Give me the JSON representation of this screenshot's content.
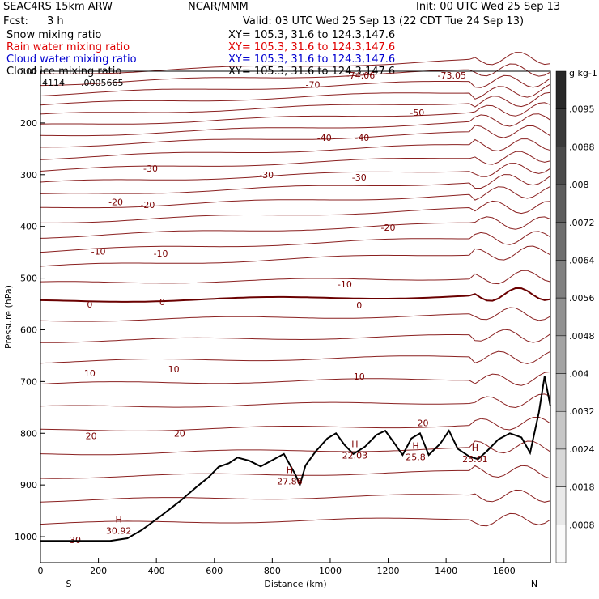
{
  "header": {
    "model": "SEAC4RS 15km ARW",
    "center": "NCAR/MMM",
    "init": "Init: 00 UTC Wed 25 Sep 13",
    "fcst_label": "Fcst:",
    "fcst_value": "3 h",
    "valid": "Valid: 03 UTC Wed 25 Sep 13 (22 CDT Tue 24 Sep 13)"
  },
  "fields": [
    {
      "name": "Snow mixing ratio",
      "xy": "XY= 105.3, 31.6 to 124.3,147.6",
      "color": "#000000"
    },
    {
      "name": "Rain water mixing ratio",
      "xy": "XY= 105.3, 31.6 to 124.3,147.6",
      "color": "#e00000"
    },
    {
      "name": "Cloud water mixing ratio",
      "xy": "XY= 105.3, 31.6 to 124.3,147.6",
      "color": "#0000d0"
    },
    {
      "name": "Cloud ice mixing ratio",
      "xy": "XY= 105.3, 31.6 to 124.3,147.6",
      "color": "#000000"
    }
  ],
  "corner_values": {
    "left": "4114",
    "right": ".0005665"
  },
  "chart_data": {
    "type": "cross-section",
    "xlabel": "Distance (km)",
    "ylabel": "Pressure (hPa)",
    "xlim": [
      0,
      1760
    ],
    "ylim": [
      1050,
      100
    ],
    "xticks": [
      0,
      200,
      400,
      600,
      800,
      1000,
      1200,
      1400,
      1600
    ],
    "yticks": [
      1000,
      900,
      800,
      700,
      600,
      500,
      400,
      300,
      200,
      100
    ],
    "end_labels": {
      "left": "S",
      "right": "N"
    },
    "temperature_contour_labels": [
      "-74.06",
      "-73.05",
      "-70",
      "-50",
      "-40",
      "-30",
      "-20",
      "-10",
      "0",
      "10",
      "20",
      "30"
    ],
    "high_labels": [
      {
        "x": 270,
        "p": 988,
        "value": "30.92"
      },
      {
        "x": 860,
        "p": 893,
        "value": "27.86"
      },
      {
        "x": 1085,
        "p": 843,
        "value": "22.03"
      },
      {
        "x": 1295,
        "p": 846,
        "value": "25.8"
      },
      {
        "x": 1500,
        "p": 850,
        "value": "25.01"
      }
    ],
    "colorbar": {
      "unit": "g kg-1",
      "ticks": [
        ".0095",
        ".0088",
        ".008",
        ".0072",
        ".0064",
        ".0056",
        ".0048",
        ".004",
        ".0032",
        ".0024",
        ".0018",
        ".0008"
      ]
    },
    "terrain": [
      [
        0,
        1008
      ],
      [
        160,
        1008
      ],
      [
        240,
        1008
      ],
      [
        300,
        1003
      ],
      [
        350,
        987
      ],
      [
        420,
        958
      ],
      [
        480,
        932
      ],
      [
        540,
        903
      ],
      [
        580,
        885
      ],
      [
        615,
        865
      ],
      [
        650,
        858
      ],
      [
        680,
        847
      ],
      [
        720,
        853
      ],
      [
        760,
        864
      ],
      [
        800,
        852
      ],
      [
        840,
        840
      ],
      [
        860,
        860
      ],
      [
        880,
        880
      ],
      [
        895,
        900
      ],
      [
        915,
        862
      ],
      [
        950,
        835
      ],
      [
        990,
        810
      ],
      [
        1020,
        800
      ],
      [
        1050,
        823
      ],
      [
        1080,
        840
      ],
      [
        1120,
        826
      ],
      [
        1160,
        803
      ],
      [
        1190,
        795
      ],
      [
        1220,
        818
      ],
      [
        1250,
        842
      ],
      [
        1280,
        810
      ],
      [
        1310,
        800
      ],
      [
        1340,
        842
      ],
      [
        1380,
        820
      ],
      [
        1410,
        795
      ],
      [
        1440,
        830
      ],
      [
        1480,
        845
      ],
      [
        1510,
        850
      ],
      [
        1540,
        835
      ],
      [
        1580,
        812
      ],
      [
        1620,
        800
      ],
      [
        1660,
        808
      ],
      [
        1690,
        838
      ],
      [
        1720,
        760
      ],
      [
        1740,
        690
      ],
      [
        1760,
        748
      ]
    ]
  }
}
